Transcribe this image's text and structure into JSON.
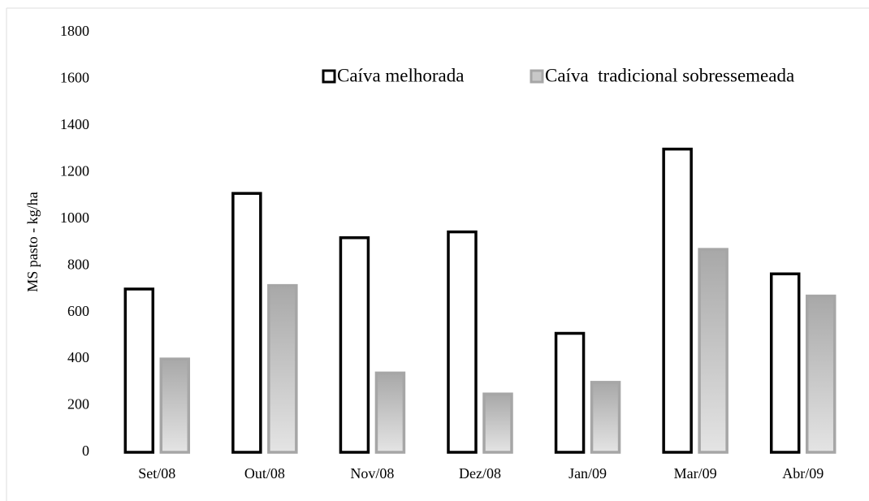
{
  "chart_data": {
    "type": "bar",
    "y_label": "MS pasto - kg/ha",
    "categories": [
      "Set/08",
      "Out/08",
      "Nov/08",
      "Dez/08",
      "Jan/09",
      "Mar/09",
      "Abr/09"
    ],
    "series": [
      {
        "name": "Caíva melhorada",
        "color": "#ffffff",
        "values": [
          700,
          1110,
          920,
          945,
          510,
          1300,
          765
        ]
      },
      {
        "name": "Caíva  tradicional sobressemeada",
        "color": "#c8c8c8",
        "values": [
          400,
          715,
          340,
          250,
          300,
          870,
          670
        ]
      }
    ],
    "ylim": [
      0,
      1800
    ],
    "yticks": [
      0,
      200,
      400,
      600,
      800,
      1000,
      1200,
      1400,
      1600,
      1800
    ],
    "grid": false
  }
}
